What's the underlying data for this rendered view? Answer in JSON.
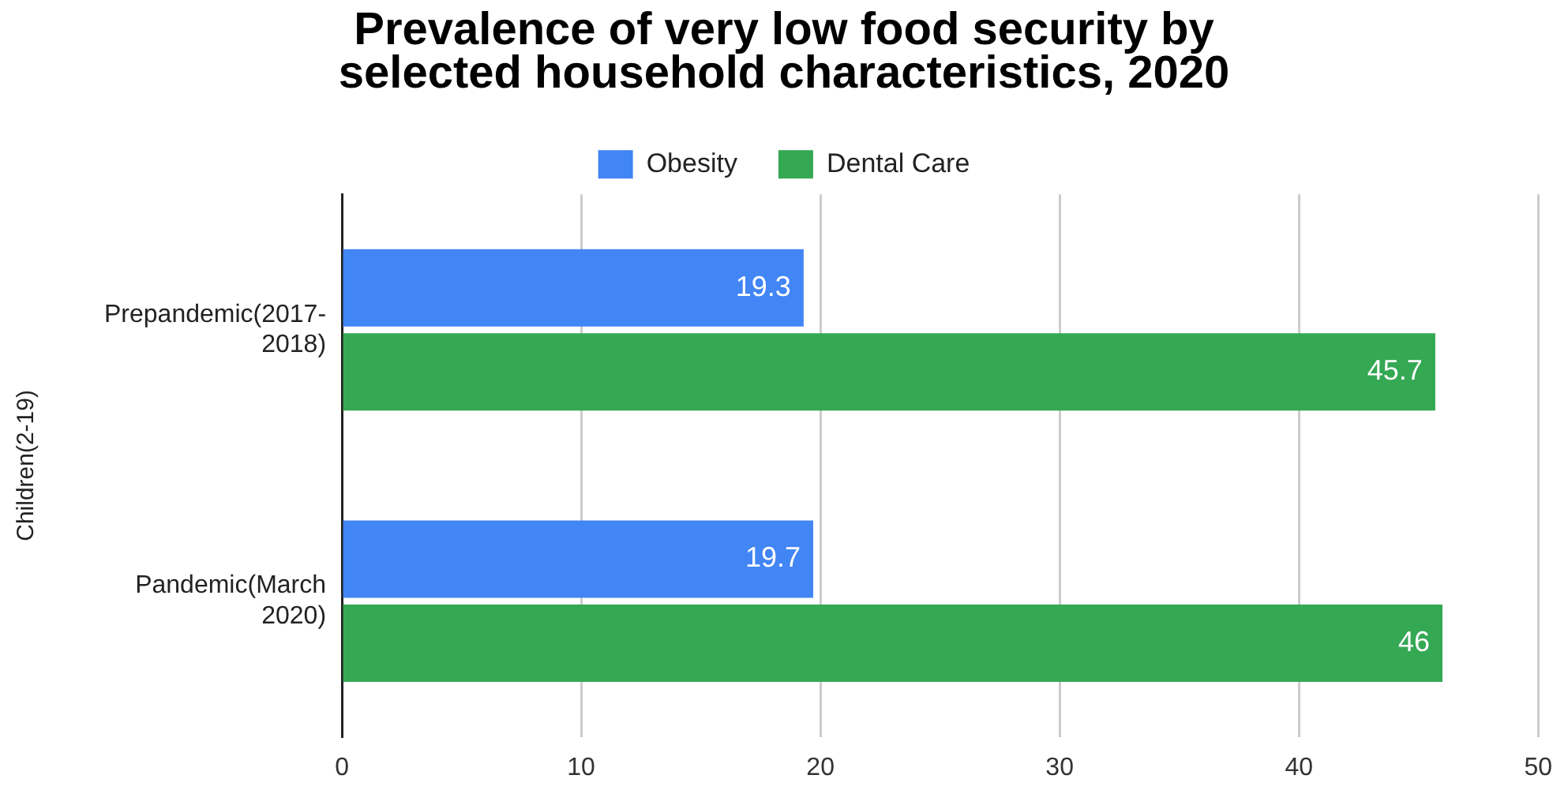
{
  "chart_data": {
    "type": "bar",
    "orientation": "horizontal",
    "title": "Prevalence of very low food security by selected household characteristics, 2020",
    "ylabel": "Children(2-19)",
    "categories": [
      "Prepandemic(2017-2018)",
      "Pandemic(March 2020)"
    ],
    "series": [
      {
        "name": "Obesity",
        "color": "#4285f4",
        "values": [
          19.3,
          19.7
        ]
      },
      {
        "name": "Dental Care",
        "color": "#34a853",
        "values": [
          45.7,
          46
        ]
      }
    ],
    "xlim": [
      0,
      50
    ],
    "xticks": [
      0,
      10,
      20,
      30,
      40,
      50
    ],
    "grid": "x",
    "legend": "top",
    "data_labels": true
  }
}
